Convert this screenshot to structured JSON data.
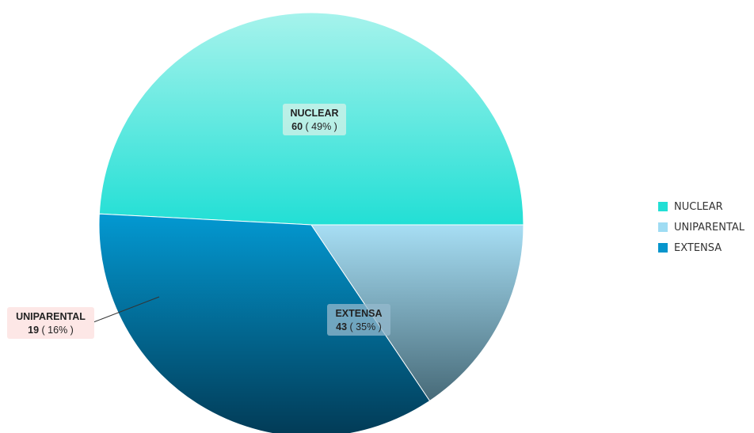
{
  "chart_data": {
    "type": "pie",
    "title": "",
    "slices": [
      {
        "label": "NUCLEAR",
        "value": 60,
        "percent_text": "( 49% )",
        "color_top": "#a6f3ec",
        "color_bottom": "#22dfd5"
      },
      {
        "label": "EXTENSA",
        "value": 43,
        "percent_text": "( 35% )",
        "color_top": "#0399d2",
        "color_bottom": "#023a55"
      },
      {
        "label": "UNIPARENTAL",
        "value": 19,
        "percent_text": "( 16% )",
        "color_top": "#a7def4",
        "color_bottom": "#476a78"
      }
    ],
    "legend": {
      "position": "right",
      "items": [
        {
          "label": "NUCLEAR",
          "color": "#22dfd5"
        },
        {
          "label": "UNIPARENTAL",
          "color": "#9fdcf3"
        },
        {
          "label": "EXTENSA",
          "color": "#0695cc"
        }
      ]
    }
  }
}
